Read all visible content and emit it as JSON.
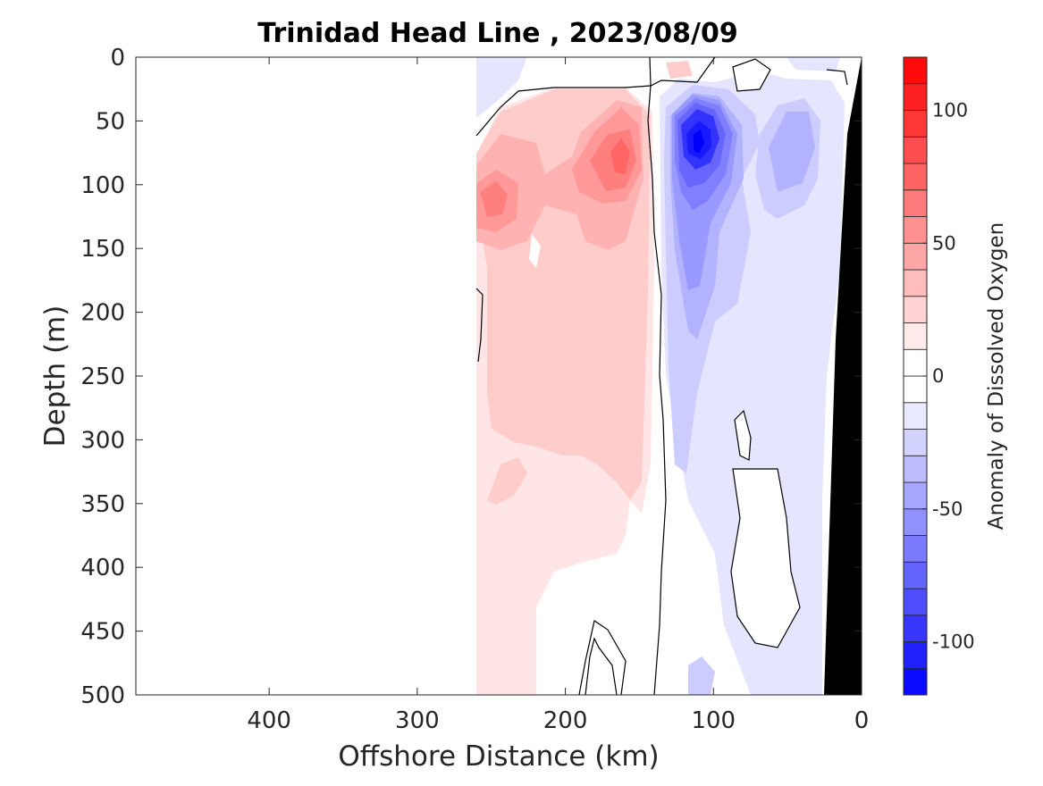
{
  "chart_data": {
    "type": "heatmap",
    "title": "Trinidad Head Line , 2023/08/09",
    "xlabel": "Offshore Distance (km)",
    "ylabel": "Depth (m)",
    "xlim": [
      490,
      0
    ],
    "ylim": [
      500,
      0
    ],
    "x_reversed": true,
    "y_reversed": true,
    "xticks": [
      400,
      300,
      200,
      100,
      0
    ],
    "yticks": [
      0,
      50,
      100,
      150,
      200,
      250,
      300,
      350,
      400,
      450,
      500
    ],
    "colorbar": {
      "label": "Anomaly of Dissolved Oxygen",
      "range": [
        -120,
        120
      ],
      "step": 10,
      "ticks": [
        100,
        50,
        0,
        -50,
        -100
      ],
      "colormap": "blue-white-red"
    },
    "bathymetry_color": "#000000",
    "data_coverage_x": [
      0,
      260
    ],
    "features": [
      {
        "name": "positive anomaly core (shelf-break, upper)",
        "x": 160,
        "depth": 80,
        "value": 60
      },
      {
        "name": "positive anomaly core (offshore)",
        "x": 250,
        "depth": 110,
        "value": 50
      },
      {
        "name": "negative anomaly core",
        "x": 112,
        "depth": 70,
        "value": -110
      },
      {
        "name": "negative anomaly (nearshore)",
        "x": 50,
        "depth": 100,
        "value": -40
      },
      {
        "name": "zero contour near 135 km",
        "x": 135,
        "depth": 250,
        "value": 0
      }
    ]
  }
}
